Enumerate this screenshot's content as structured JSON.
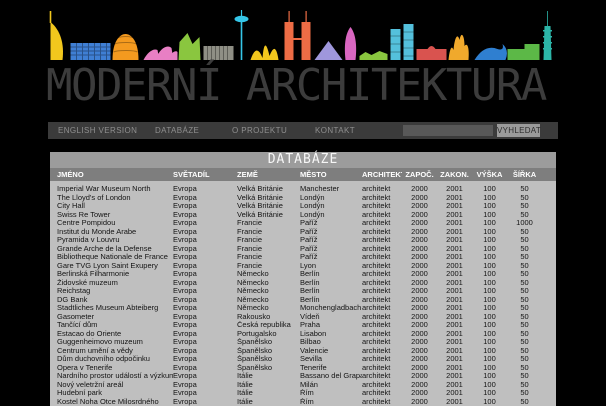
{
  "header": {
    "title": "MODERNÍ ARCHITEKTURA"
  },
  "nav": {
    "items": [
      {
        "label": "ENGLISH VERSION"
      },
      {
        "label": "DATABÁZE"
      },
      {
        "label": "O PROJEKTU"
      },
      {
        "label": "KONTAKT"
      }
    ],
    "search": {
      "value": "",
      "placeholder": "",
      "button_label": "VYHLEDAT"
    }
  },
  "database": {
    "section_title": "DATABÁZE",
    "columns": [
      "JMÉNO",
      "SVĚTADÍL",
      "ZEMĚ",
      "MĚSTO",
      "ARCHITEKT",
      "ZAPOČ.",
      "ZAKON.",
      "VÝŠKA",
      "ŠÍŘKA"
    ],
    "rows": [
      [
        "Imperial War Museum North",
        "Evropa",
        "Velká Británie",
        "Manchester",
        "architekt",
        "2000",
        "2001",
        "100",
        "50"
      ],
      [
        "The Lloyd's of London",
        "Evropa",
        "Velká Británie",
        "Londýn",
        "architekt",
        "2000",
        "2001",
        "100",
        "50"
      ],
      [
        "City Hall",
        "Evropa",
        "Velká Británie",
        "Londýn",
        "architekt",
        "2000",
        "2001",
        "100",
        "50"
      ],
      [
        "Swiss Re Tower",
        "Evropa",
        "Velká Británie",
        "Londýn",
        "architekt",
        "2000",
        "2001",
        "100",
        "50"
      ],
      [
        "Centre Pompidou",
        "Evropa",
        "Francie",
        "Paříž",
        "architekt",
        "2000",
        "2001",
        "100",
        "1000"
      ],
      [
        "Institut du Monde Arabe",
        "Evropa",
        "Francie",
        "Paříž",
        "architekt",
        "2000",
        "2001",
        "100",
        "50"
      ],
      [
        "Pyramida v Louvru",
        "Evropa",
        "Francie",
        "Paříž",
        "architekt",
        "2000",
        "2001",
        "100",
        "50"
      ],
      [
        "Grande Arche de la Defense",
        "Evropa",
        "Francie",
        "Paříž",
        "architekt",
        "2000",
        "2001",
        "100",
        "50"
      ],
      [
        "Bibliotheque Nationale de France",
        "Evropa",
        "Francie",
        "Paříž",
        "architekt",
        "2000",
        "2001",
        "100",
        "50"
      ],
      [
        "Gare TVG Lyon Saint Exupery",
        "Evropa",
        "Francie",
        "Lyon",
        "architekt",
        "2000",
        "2001",
        "100",
        "50"
      ],
      [
        "Berlinská Filharmonie",
        "Evropa",
        "Německo",
        "Berlín",
        "architekt",
        "2000",
        "2001",
        "100",
        "50"
      ],
      [
        "Židovské muzeum",
        "Evropa",
        "Německo",
        "Berlín",
        "architekt",
        "2000",
        "2001",
        "100",
        "50"
      ],
      [
        "Reichstag",
        "Evropa",
        "Německo",
        "Berlín",
        "architekt",
        "2000",
        "2001",
        "100",
        "50"
      ],
      [
        "DG Bank",
        "Evropa",
        "Německo",
        "Berlín",
        "architekt",
        "2000",
        "2001",
        "100",
        "50"
      ],
      [
        "Stadtliches Museum Abteiberg",
        "Evropa",
        "Německo",
        "Monchengladbach",
        "architekt",
        "2000",
        "2001",
        "100",
        "50"
      ],
      [
        "Gasometer",
        "Evropa",
        "Rakousko",
        "Vídeň",
        "architekt",
        "2000",
        "2001",
        "100",
        "50"
      ],
      [
        "Tančící dům",
        "Evropa",
        "Česká republika",
        "Praha",
        "architekt",
        "2000",
        "2001",
        "100",
        "50"
      ],
      [
        "Estacao do Oriente",
        "Evropa",
        "Portugalsko",
        "Lisabon",
        "architekt",
        "2000",
        "2001",
        "100",
        "50"
      ],
      [
        "Guggenheimovo muzeum",
        "Evropa",
        "Španělsko",
        "Bilbao",
        "architekt",
        "2000",
        "2001",
        "100",
        "50"
      ],
      [
        "Centrum umění a vědy",
        "Evropa",
        "Španělsko",
        "Valencie",
        "architekt",
        "2000",
        "2001",
        "100",
        "50"
      ],
      [
        "Dům duchovního odpočinku",
        "Evropa",
        "Španělsko",
        "Sevilla",
        "architekt",
        "2000",
        "2001",
        "100",
        "50"
      ],
      [
        "Opera v Tenerife",
        "Evropa",
        "Španělsko",
        "Tenerife",
        "architekt",
        "2000",
        "2001",
        "100",
        "50"
      ],
      [
        "Nardního prostor událostí a výzkumu",
        "Evropa",
        "Itálie",
        "Bassano del Grapa",
        "architekt",
        "2000",
        "2001",
        "100",
        "50"
      ],
      [
        "Nový veletržní areál",
        "Evropa",
        "Itálie",
        "Milán",
        "architekt",
        "2000",
        "2001",
        "100",
        "50"
      ],
      [
        "Hudební park",
        "Evropa",
        "Itálie",
        "Řím",
        "architekt",
        "2000",
        "2001",
        "100",
        "50"
      ],
      [
        "Kostel Noha Otce Milosrdného",
        "Evropa",
        "Itálie",
        "Řím",
        "architekt",
        "2000",
        "2001",
        "100",
        "50"
      ]
    ]
  },
  "colors": {
    "page_bg": "#000000",
    "title_text": "#3c3c3c",
    "navbar_bg": "#3b3b3b",
    "nav_text": "#8f8f8f",
    "search_input_bg": "#585858",
    "search_button_bg": "#9a9a9a",
    "section_title_bg": "#9c9c9c",
    "table_header_bg": "#7e7e7e",
    "table_body_bg": "#bfbfbf",
    "skyline_palette": [
      "#f2c71d",
      "#3f7fd4",
      "#f49a1f",
      "#e87fc4",
      "#8ac63f",
      "#8f8f85",
      "#35c6e8",
      "#f2c71d",
      "#ed6c45",
      "#9f97dc",
      "#d966c0",
      "#8ac63f",
      "#54c0dc",
      "#d9534f",
      "#f0a92c",
      "#2f7fd0",
      "#5cb847",
      "#2cb5a8"
    ]
  }
}
